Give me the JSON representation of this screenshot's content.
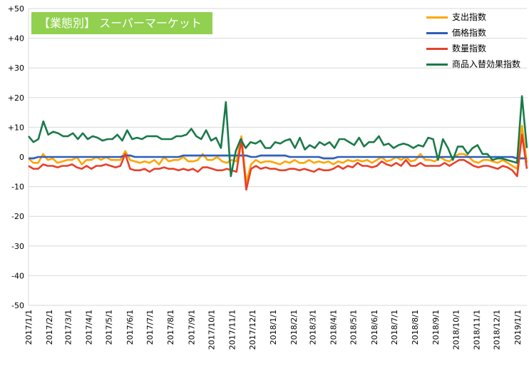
{
  "title": "【業態別】 スーパーマーケット",
  "colors": {
    "支出指数": "#ffa500",
    "価格指数": "#2e5fba",
    "数量指数": "#e8402a",
    "商品入替効果指数": "#1a7a4a",
    "title_bg": "#92d050"
  },
  "chart_data": {
    "type": "line",
    "title": "【業態別】 スーパーマーケット",
    "xlabel": "",
    "ylabel": "",
    "ylim": [
      -50,
      50
    ],
    "y_ticks": [
      -50,
      -40,
      -30,
      -20,
      -10,
      0,
      10,
      20,
      30,
      40,
      50
    ],
    "y_tick_labels": [
      "-50",
      "-40",
      "-30",
      "-20",
      "-10",
      "0",
      "+10",
      "+20",
      "+30",
      "+40",
      "+50"
    ],
    "x_tick_labels": [
      "2017/1/1",
      "2017/2/1",
      "2017/3/1",
      "2017/4/1",
      "2017/5/1",
      "2017/6/1",
      "2017/7/1",
      "2017/8/1",
      "2017/9/1",
      "2017/10/1",
      "2017/11/1",
      "2017/12/1",
      "2018/1/1",
      "2018/2/1",
      "2018/3/1",
      "2018/4/1",
      "2018/5/1",
      "2018/6/1",
      "2018/7/1",
      "2018/8/1",
      "2018/9/1",
      "2018/10/1",
      "2018/11/1",
      "2018/12/1",
      "2019/1/1"
    ],
    "grid": true,
    "legend_position": "top-right",
    "x_start": "2017/1/1",
    "x_end": "2019/1/15",
    "series": [
      {
        "name": "支出指数",
        "color": "#ffa500",
        "values": [
          -0.5,
          -2,
          -2,
          1,
          -1,
          -0.5,
          -2,
          -1.5,
          -1,
          -1,
          0,
          -2.5,
          -1,
          -1,
          0,
          -1,
          0,
          -1,
          -1,
          -1,
          2,
          -1,
          -1.5,
          -2,
          -1.5,
          -2,
          -1,
          -2.5,
          0,
          -1.5,
          -1,
          -1,
          0,
          -1.5,
          -1.5,
          -1,
          1,
          -1,
          -1,
          0,
          -1.5,
          -2,
          -1,
          -1.5,
          7,
          -8.5,
          -2.5,
          -1,
          -2,
          -1.5,
          -1.5,
          -2,
          -2.5,
          -1.5,
          -2,
          -1,
          -2,
          -2,
          -1,
          -2,
          -1.5,
          -2,
          -1.5,
          -2.5,
          -1.5,
          -2,
          -1,
          -1.5,
          -1,
          -1.5,
          -1,
          -2,
          -1,
          0,
          -1.5,
          -1,
          0,
          -1,
          0,
          -1.5,
          -1,
          1,
          -1,
          -1,
          -1.5,
          0,
          -1,
          -1.5,
          0,
          1,
          1,
          0,
          -1.5,
          -2,
          -1,
          -1,
          -1.5,
          -2,
          -1,
          -2,
          -3,
          -4,
          10.5,
          -2
        ]
      },
      {
        "name": "価格指数",
        "color": "#2e5fba",
        "values": [
          -0.5,
          -0.5,
          0,
          0,
          0,
          0,
          0,
          0,
          0,
          0,
          0,
          0,
          0,
          0,
          0,
          0,
          0,
          0,
          0,
          0,
          0.5,
          0.5,
          0,
          0,
          0,
          0,
          0,
          0,
          0,
          0,
          0,
          0,
          0.5,
          0.5,
          0.5,
          0.5,
          0.5,
          0.5,
          0.5,
          0.5,
          0.5,
          0.5,
          0.5,
          0.5,
          0.5,
          0.5,
          0,
          0,
          0.5,
          0.5,
          0.5,
          0.5,
          0.5,
          0.5,
          0,
          0,
          0,
          0,
          0,
          0,
          0,
          -0.5,
          -0.5,
          -0.5,
          0,
          0,
          0,
          0,
          0,
          0,
          0,
          0,
          0,
          0,
          0,
          0,
          0,
          0,
          0,
          0,
          0,
          0,
          0,
          0,
          0,
          0,
          0,
          0,
          0,
          0,
          0,
          0,
          0,
          0,
          0,
          0,
          0,
          0,
          0,
          0,
          0,
          -0.5,
          -0.5,
          -0.5
        ]
      },
      {
        "name": "数量指数",
        "color": "#e8402a",
        "values": [
          -3,
          -4,
          -4,
          -2.5,
          -3,
          -3,
          -3.5,
          -3,
          -3,
          -2.5,
          -3.5,
          -4,
          -3,
          -4,
          -3,
          -3,
          -2.5,
          -3,
          -3.5,
          -3,
          1,
          -4,
          -4.5,
          -4.5,
          -4,
          -5,
          -4,
          -4,
          -3.5,
          -4,
          -4,
          -4.5,
          -4,
          -4.5,
          -4,
          -5,
          -3.5,
          -3.5,
          -4,
          -4.5,
          -4.5,
          -4,
          -4.5,
          -5,
          6,
          -11,
          -4,
          -3,
          -4,
          -3.5,
          -4,
          -4,
          -4.5,
          -4.5,
          -4,
          -4,
          -4.5,
          -4,
          -4.5,
          -5,
          -4,
          -4.5,
          -4.5,
          -4,
          -3,
          -4,
          -3,
          -3.5,
          -2,
          -3,
          -3,
          -3.5,
          -3,
          -1.5,
          -2.5,
          -3,
          -2,
          -3,
          -1,
          -3,
          -3,
          -2,
          -3,
          -3,
          -3,
          -3,
          -2,
          -3,
          -2,
          -1,
          -1,
          -2,
          -3,
          -3.5,
          -3,
          -3,
          -3.5,
          -4,
          -3,
          -3.5,
          -4.5,
          -6.5,
          7.5,
          -4
        ]
      },
      {
        "name": "商品入替効果指数",
        "color": "#1a7a4a",
        "values": [
          7,
          5,
          6,
          12,
          7.5,
          8.5,
          8,
          7,
          7,
          8,
          6,
          8,
          6,
          7,
          6.5,
          5.5,
          6,
          6,
          7.5,
          5.5,
          9,
          6,
          6.5,
          6,
          7,
          7,
          7,
          6,
          6,
          6,
          7,
          7,
          7.5,
          9.5,
          7,
          6,
          9,
          5.5,
          6.5,
          3,
          18.5,
          -6.5,
          2,
          6,
          3,
          5,
          4.5,
          5.5,
          3,
          3,
          5,
          4.5,
          5.5,
          6,
          3,
          6.5,
          2.5,
          4,
          3,
          5,
          4,
          5,
          3,
          6,
          6,
          5,
          4,
          6.5,
          3.5,
          5,
          5,
          7,
          4,
          4.5,
          3,
          4,
          4.5,
          4,
          3,
          4,
          3.5,
          6.5,
          6,
          -1,
          6,
          3,
          -1,
          3.5,
          3.5,
          1,
          3,
          4,
          1,
          1,
          -1,
          -0.5,
          -0.5,
          -1,
          -1.5,
          -2,
          20.5,
          3
        ]
      }
    ]
  }
}
